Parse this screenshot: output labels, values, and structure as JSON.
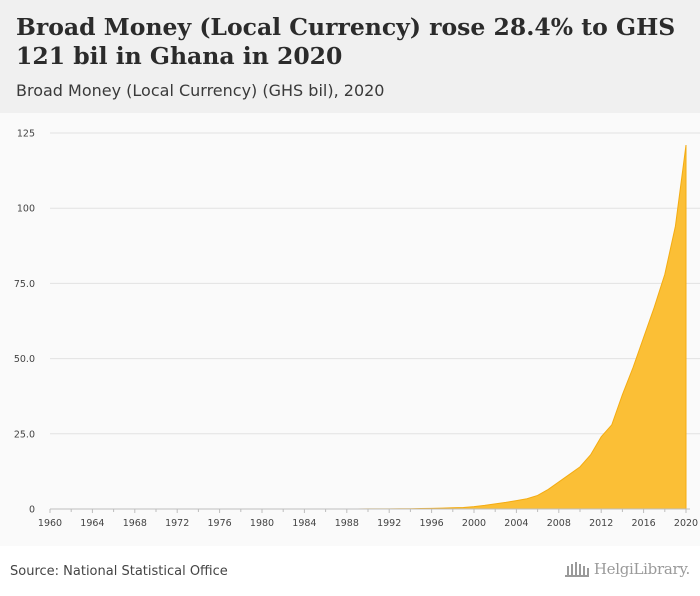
{
  "header": {
    "title": "Broad Money (Local Currency) rose 28.4% to GHS 121 bil in Ghana in 2020",
    "subtitle": "Broad Money (Local Currency) (GHS bil), 2020"
  },
  "footer": {
    "source": "Source: National Statistical Office",
    "logo_text": "HelgiLibrary."
  },
  "colors": {
    "area_fill": "#fbbf36",
    "area_stroke": "#f4ac12",
    "grid": "#e2e2e2",
    "axis": "#bdbdbd",
    "header_bg": "#f0f0f0"
  },
  "chart_data": {
    "type": "area",
    "title": "Broad Money (Local Currency) rose 28.4% to GHS 121 bil in Ghana in 2020",
    "subtitle": "Broad Money (Local Currency) (GHS bil), 2020",
    "xlabel": "",
    "ylabel": "",
    "xlim": [
      1960,
      2020
    ],
    "ylim": [
      0,
      125
    ],
    "grid": true,
    "legend": "none",
    "x_ticks": [
      "1960",
      "1964",
      "1968",
      "1972",
      "1976",
      "1980",
      "1984",
      "1988",
      "1992",
      "1996",
      "2000",
      "2004",
      "2008",
      "2012",
      "2016",
      "2020"
    ],
    "y_ticks": [
      "0",
      "25.0",
      "50.0",
      "75.0",
      "100",
      "125"
    ],
    "series": [
      {
        "x": [
          1960,
          1961,
          1962,
          1963,
          1964,
          1965,
          1966,
          1967,
          1968,
          1969,
          1970,
          1971,
          1972,
          1973,
          1974,
          1975,
          1976,
          1977,
          1978,
          1979,
          1980,
          1981,
          1982,
          1983,
          1984,
          1985,
          1986,
          1987,
          1988,
          1989,
          1990,
          1991,
          1992,
          1993,
          1994,
          1995,
          1996,
          1997,
          1998,
          1999,
          2000,
          2001,
          2002,
          2003,
          2004,
          2005,
          2006,
          2007,
          2008,
          2009,
          2010,
          2011,
          2012,
          2013,
          2014,
          2015,
          2016,
          2017,
          2018,
          2019,
          2020
        ],
        "values": [
          0.0,
          0.0,
          0.0,
          0.0,
          0.0,
          0.0,
          0.0,
          0.0,
          0.0,
          0.0,
          0.0,
          0.0,
          0.0,
          0.0,
          0.0,
          0.0,
          0.0,
          0.0,
          0.0,
          0.0,
          0.0,
          0.0,
          0.0,
          0.0,
          0.0,
          0.0,
          0.0,
          0.01,
          0.01,
          0.02,
          0.03,
          0.04,
          0.05,
          0.07,
          0.1,
          0.15,
          0.2,
          0.3,
          0.4,
          0.5,
          0.8,
          1.2,
          1.7,
          2.2,
          2.8,
          3.4,
          4.5,
          6.5,
          9.0,
          11.5,
          14.0,
          18.0,
          24.0,
          28.0,
          38.0,
          47.0,
          57.0,
          67.0,
          78.0,
          94.0,
          121.0
        ]
      }
    ]
  }
}
